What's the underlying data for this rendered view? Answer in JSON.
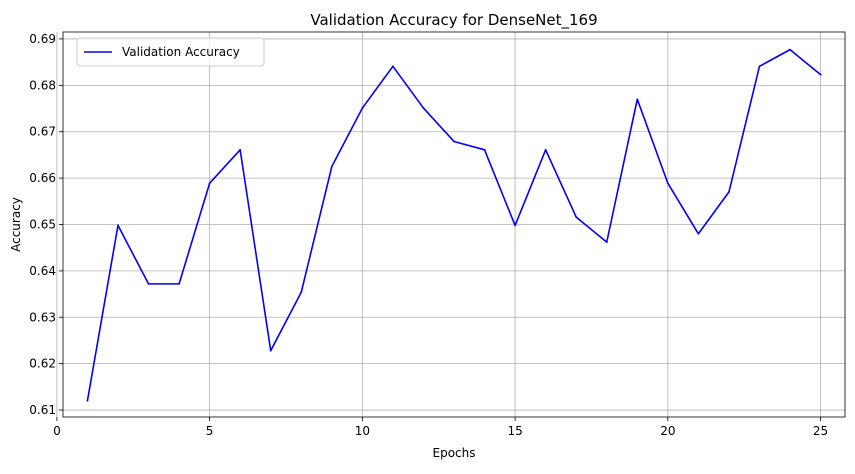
{
  "chart_data": {
    "type": "line",
    "title": "Validation Accuracy for DenseNet_169",
    "xlabel": "Epochs",
    "ylabel": "Accuracy",
    "xlim": [
      0.2,
      25.8
    ],
    "ylim": [
      0.6085,
      0.6915
    ],
    "x_ticks": [
      0,
      5,
      10,
      15,
      20,
      25
    ],
    "y_ticks": [
      0.61,
      0.62,
      0.63,
      0.64,
      0.65,
      0.66,
      0.67,
      0.68,
      0.69
    ],
    "grid": true,
    "legend": {
      "position": "top-left"
    },
    "x": [
      1,
      2,
      3,
      4,
      5,
      6,
      7,
      8,
      9,
      10,
      11,
      12,
      13,
      14,
      15,
      16,
      17,
      18,
      19,
      20,
      21,
      22,
      23,
      24,
      25
    ],
    "series": [
      {
        "name": "Validation Accuracy",
        "color": "#0000ff",
        "values": [
          0.612,
          0.6498,
          0.6372,
          0.6372,
          0.6589,
          0.6661,
          0.6228,
          0.6354,
          0.6625,
          0.6751,
          0.6841,
          0.6751,
          0.6679,
          0.6661,
          0.6498,
          0.6661,
          0.6516,
          0.6462,
          0.677,
          0.6589,
          0.648,
          0.657,
          0.6841,
          0.6877,
          0.6823
        ]
      }
    ]
  }
}
